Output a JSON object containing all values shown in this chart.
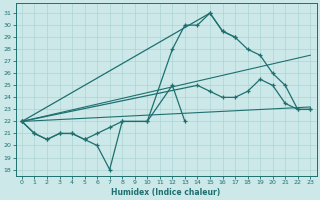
{
  "xlabel": "Humidex (Indice chaleur)",
  "bg_color": "#cde8e8",
  "line_color": "#1e7070",
  "grid_color": "#aad4d4",
  "xlim": [
    -0.5,
    23.5
  ],
  "ylim": [
    17.5,
    31.8
  ],
  "yticks": [
    18,
    19,
    20,
    21,
    22,
    23,
    24,
    25,
    26,
    27,
    28,
    29,
    30,
    31
  ],
  "xticks": [
    0,
    1,
    2,
    3,
    4,
    5,
    6,
    7,
    8,
    9,
    10,
    11,
    12,
    13,
    14,
    15,
    16,
    17,
    18,
    19,
    20,
    21,
    22,
    23
  ],
  "line_jagged_x": [
    0,
    1,
    2,
    3,
    4,
    5,
    6,
    7,
    8,
    10,
    12,
    13
  ],
  "line_jagged_y": [
    22,
    21,
    20.5,
    21,
    21,
    20.5,
    20,
    18,
    22,
    22,
    25,
    22
  ],
  "line_high_x": [
    0,
    1,
    2,
    3,
    4,
    5,
    6,
    7,
    8,
    10,
    12,
    13,
    14,
    15,
    16,
    17
  ],
  "line_high_y": [
    22,
    21,
    20.5,
    21,
    21,
    20.5,
    21,
    21.5,
    22,
    22,
    28,
    30,
    30,
    31,
    29.5,
    29
  ],
  "line_diag1_x": [
    0,
    15,
    16,
    17,
    18,
    19,
    20,
    21,
    22,
    23
  ],
  "line_diag1_y": [
    22,
    31,
    29.5,
    29,
    28,
    27.5,
    26,
    25,
    23,
    23
  ],
  "line_diag2_x": [
    0,
    14,
    15,
    16,
    17,
    18,
    19,
    20,
    21,
    22,
    23
  ],
  "line_diag2_y": [
    22,
    25,
    24.5,
    24,
    24,
    24.5,
    25.5,
    25,
    23.5,
    23,
    23
  ]
}
